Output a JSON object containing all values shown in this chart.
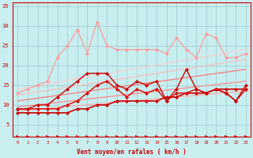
{
  "title": "",
  "xlabel": "Vent moyen/en rafales ( km/h )",
  "ylabel": "",
  "bg_color": "#c8eef0",
  "grid_color": "#a0d0d4",
  "xlim": [
    -0.5,
    23.5
  ],
  "ylim": [
    2,
    36
  ],
  "yticks": [
    5,
    10,
    15,
    20,
    25,
    30,
    35
  ],
  "xticks": [
    0,
    1,
    2,
    3,
    4,
    5,
    6,
    7,
    8,
    9,
    10,
    11,
    12,
    13,
    14,
    15,
    16,
    17,
    18,
    19,
    20,
    21,
    22,
    23
  ],
  "lines": [
    {
      "x": [
        0,
        1,
        2,
        3,
        4,
        5,
        6,
        7,
        8,
        9,
        10,
        11,
        12,
        13,
        14,
        15,
        16,
        17,
        18,
        19,
        20,
        21,
        22,
        23
      ],
      "y": [
        2,
        2,
        2,
        2,
        2,
        2,
        2,
        2,
        2,
        2,
        2,
        2,
        2,
        2,
        2,
        2,
        2,
        2,
        2,
        2,
        2,
        2,
        2,
        2
      ],
      "color": "#cc0000",
      "lw": 0.8,
      "marker": ">",
      "ms": 3,
      "alpha": 1.0,
      "linestyle": "dashed"
    },
    {
      "x": [
        0,
        23
      ],
      "y": [
        8.5,
        13.5
      ],
      "color": "#ffaaaa",
      "lw": 1.0,
      "marker": null,
      "ms": 0,
      "alpha": 0.9,
      "linestyle": "solid"
    },
    {
      "x": [
        0,
        23
      ],
      "y": [
        9.5,
        16.0
      ],
      "color": "#ff8888",
      "lw": 1.0,
      "marker": null,
      "ms": 0,
      "alpha": 0.9,
      "linestyle": "solid"
    },
    {
      "x": [
        0,
        23
      ],
      "y": [
        11.0,
        19.0
      ],
      "color": "#ff7777",
      "lw": 1.0,
      "marker": null,
      "ms": 0,
      "alpha": 0.9,
      "linestyle": "solid"
    },
    {
      "x": [
        0,
        23
      ],
      "y": [
        12.5,
        21.5
      ],
      "color": "#ffbbbb",
      "lw": 1.0,
      "marker": null,
      "ms": 0,
      "alpha": 0.85,
      "linestyle": "solid"
    },
    {
      "x": [
        0,
        23
      ],
      "y": [
        14.0,
        24.0
      ],
      "color": "#ffcccc",
      "lw": 1.0,
      "marker": null,
      "ms": 0,
      "alpha": 0.85,
      "linestyle": "solid"
    },
    {
      "x": [
        0,
        1,
        2,
        3,
        4,
        5,
        6,
        7,
        8,
        9,
        10,
        11,
        12,
        13,
        14,
        15,
        16,
        17,
        18,
        19,
        20,
        21,
        22,
        23
      ],
      "y": [
        8,
        8,
        8,
        8,
        8,
        8,
        9,
        9,
        10,
        10,
        11,
        11,
        11,
        11,
        11,
        12,
        12,
        13,
        13,
        13,
        14,
        14,
        14,
        14
      ],
      "color": "#cc0000",
      "lw": 1.2,
      "marker": "D",
      "ms": 2,
      "alpha": 1.0,
      "linestyle": "solid"
    },
    {
      "x": [
        0,
        1,
        2,
        3,
        4,
        5,
        6,
        7,
        8,
        9,
        10,
        11,
        12,
        13,
        14,
        15,
        16,
        17,
        18,
        19,
        20,
        21,
        22,
        23
      ],
      "y": [
        9,
        9,
        9,
        9,
        9,
        10,
        11,
        13,
        15,
        16,
        14,
        12,
        14,
        13,
        14,
        11,
        13,
        13,
        14,
        13,
        14,
        13,
        11,
        14
      ],
      "color": "#dd0000",
      "lw": 1.0,
      "marker": "D",
      "ms": 2,
      "alpha": 1.0,
      "linestyle": "solid"
    },
    {
      "x": [
        0,
        1,
        2,
        3,
        4,
        5,
        6,
        7,
        8,
        9,
        10,
        11,
        12,
        13,
        14,
        15,
        16,
        17,
        18,
        19,
        20,
        21,
        22,
        23
      ],
      "y": [
        9,
        9,
        10,
        10,
        12,
        14,
        16,
        18,
        18,
        18,
        15,
        14,
        16,
        15,
        16,
        11,
        14,
        19,
        14,
        13,
        14,
        13,
        11,
        15
      ],
      "color": "#cc0000",
      "lw": 1.0,
      "marker": "D",
      "ms": 2,
      "alpha": 1.0,
      "linestyle": "solid"
    },
    {
      "x": [
        0,
        1,
        2,
        3,
        4,
        5,
        6,
        7,
        8,
        9,
        10,
        11,
        12,
        13,
        14,
        15,
        16,
        17,
        18,
        19,
        20,
        21,
        22,
        23
      ],
      "y": [
        13,
        14,
        15,
        16,
        22,
        25,
        29,
        23,
        31,
        25,
        24,
        24,
        24,
        24,
        24,
        23,
        27,
        24,
        22,
        28,
        27,
        22,
        22,
        23
      ],
      "color": "#ff9999",
      "lw": 1.0,
      "marker": "D",
      "ms": 2,
      "alpha": 0.9,
      "linestyle": "solid"
    }
  ]
}
